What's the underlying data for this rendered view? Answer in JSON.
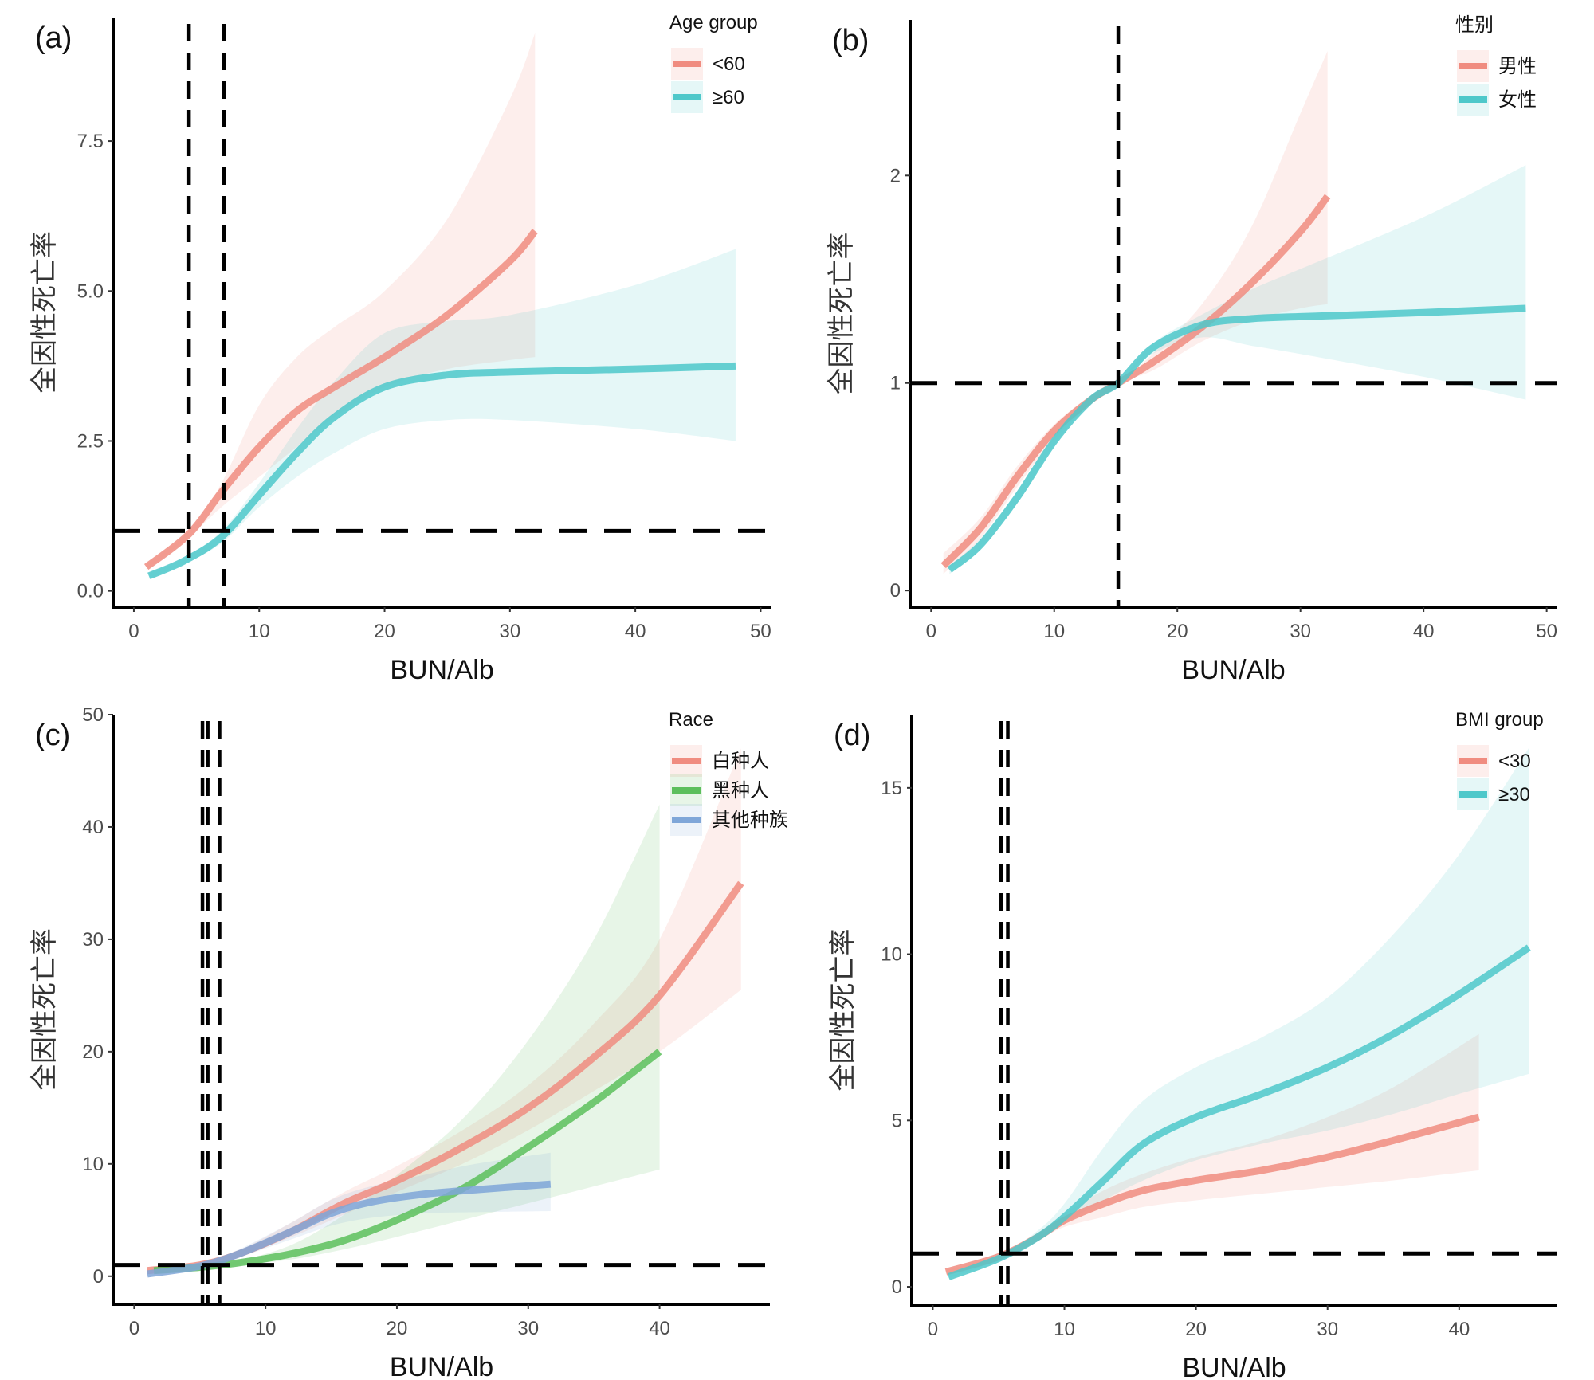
{
  "chart_data": [
    {
      "panel_label": "(a)",
      "type": "line",
      "xlabel": "BUN/Alb",
      "ylabel": "全因性死亡率",
      "xlim": [
        -1.65,
        50.8
      ],
      "ylim": [
        -0.27,
        9.56
      ],
      "xticks": [
        0,
        10,
        20,
        30,
        40,
        50
      ],
      "xtick_labels": [
        "0",
        "10",
        "20",
        "30",
        "40",
        "50"
      ],
      "yticks": [
        0,
        2.5,
        5,
        7.5
      ],
      "ytick_labels": [
        "0.0",
        "2.5",
        "5.0",
        "7.5"
      ],
      "vlines": [
        4.4,
        7.2
      ],
      "hline": 1,
      "grid": false,
      "legend": {
        "title": "Age group",
        "position": "top-right"
      },
      "series": [
        {
          "name": "<60",
          "color": "#F08C80",
          "x": [
            1,
            4.4,
            7,
            10,
            13,
            16,
            20,
            25,
            30,
            32
          ],
          "y": [
            0.4,
            0.95,
            1.65,
            2.4,
            3.0,
            3.4,
            3.9,
            4.6,
            5.5,
            6.0
          ],
          "lower": [
            0.35,
            0.9,
            1.4,
            1.9,
            2.4,
            2.9,
            3.4,
            3.7,
            3.85,
            3.9
          ],
          "upper": [
            0.45,
            1.0,
            1.8,
            3.1,
            3.9,
            4.4,
            5.0,
            6.2,
            8.2,
            9.3
          ]
        },
        {
          "name": "≥60",
          "color": "#4EC8CA",
          "x": [
            1.2,
            4,
            7,
            10,
            13,
            16,
            20,
            25,
            30,
            40,
            48
          ],
          "y": [
            0.25,
            0.5,
            0.9,
            1.6,
            2.3,
            2.9,
            3.4,
            3.6,
            3.65,
            3.7,
            3.75
          ],
          "lower": [
            0.2,
            0.45,
            0.8,
            1.4,
            1.9,
            2.3,
            2.7,
            2.85,
            2.85,
            2.7,
            2.5
          ],
          "upper": [
            0.3,
            0.55,
            1.0,
            1.8,
            2.7,
            3.5,
            4.3,
            4.5,
            4.6,
            5.1,
            5.7
          ]
        }
      ]
    },
    {
      "panel_label": "(b)",
      "type": "line",
      "xlabel": "BUN/Alb",
      "ylabel": "全因性死亡率",
      "xlim": [
        -1.7,
        50.8
      ],
      "ylim": [
        -0.08,
        2.75
      ],
      "xticks": [
        0,
        10,
        20,
        30,
        40,
        50
      ],
      "xtick_labels": [
        "0",
        "10",
        "20",
        "30",
        "40",
        "50"
      ],
      "yticks": [
        0,
        1,
        2
      ],
      "ytick_labels": [
        "0",
        "1",
        "2"
      ],
      "vlines": [
        15.2
      ],
      "hline": 1,
      "grid": false,
      "legend": {
        "title": "性别",
        "position": "top-right"
      },
      "series": [
        {
          "name": "男性",
          "color": "#F08C80",
          "x": [
            1,
            4,
            7,
            10,
            13,
            15.2,
            18,
            22,
            26,
            30,
            32.2
          ],
          "y": [
            0.12,
            0.3,
            0.55,
            0.77,
            0.92,
            1.0,
            1.1,
            1.27,
            1.48,
            1.73,
            1.9
          ],
          "lower": [
            0.08,
            0.25,
            0.5,
            0.73,
            0.9,
            1.0,
            1.06,
            1.2,
            1.3,
            1.36,
            1.38
          ],
          "upper": [
            0.18,
            0.35,
            0.6,
            0.8,
            0.94,
            1.0,
            1.14,
            1.38,
            1.75,
            2.3,
            2.6
          ]
        },
        {
          "name": "女性",
          "color": "#4EC8CA",
          "x": [
            1.5,
            4,
            7,
            10,
            13,
            15.2,
            18,
            22,
            26,
            30,
            40,
            48.3
          ],
          "y": [
            0.1,
            0.22,
            0.45,
            0.72,
            0.92,
            1.0,
            1.17,
            1.28,
            1.31,
            1.32,
            1.34,
            1.36
          ],
          "lower": [
            0.08,
            0.2,
            0.42,
            0.7,
            0.91,
            1.0,
            1.14,
            1.22,
            1.18,
            1.14,
            1.03,
            0.92
          ],
          "upper": [
            0.12,
            0.25,
            0.48,
            0.74,
            0.93,
            1.0,
            1.19,
            1.33,
            1.45,
            1.55,
            1.8,
            2.05
          ]
        }
      ]
    },
    {
      "panel_label": "(c)",
      "type": "line",
      "xlabel": "BUN/Alb",
      "ylabel": "全因性死亡率",
      "xlim": [
        -1.6,
        48.4
      ],
      "ylim": [
        -2.5,
        50
      ],
      "xticks": [
        0,
        10,
        20,
        30,
        40
      ],
      "xtick_labels": [
        "0",
        "10",
        "20",
        "30",
        "40"
      ],
      "yticks": [
        0,
        10,
        20,
        30,
        40,
        50
      ],
      "ytick_labels": [
        "0",
        "10",
        "20",
        "30",
        "40",
        "50"
      ],
      "vlines": [
        5.2,
        5.6,
        6.5
      ],
      "hline": 1,
      "grid": false,
      "legend": {
        "title": "Race",
        "position": "top-right"
      },
      "series": [
        {
          "name": "白种人",
          "color": "#F08C80",
          "x": [
            1,
            5,
            8,
            12,
            16,
            20,
            25,
            30,
            35,
            40,
            46.2
          ],
          "y": [
            0.5,
            1,
            2,
            4,
            6.5,
            8.5,
            11.5,
            15,
            19.5,
            25,
            35
          ],
          "lower": [
            0.4,
            0.9,
            1.8,
            3.5,
            5.5,
            7.5,
            10,
            13,
            16.5,
            20,
            25.5
          ],
          "upper": [
            0.6,
            1.1,
            2.3,
            4.8,
            7.5,
            9.8,
            13,
            17,
            22.5,
            30,
            47
          ]
        },
        {
          "name": "黑种人",
          "color": "#5CBF5C",
          "x": [
            1.5,
            5,
            8,
            12,
            16,
            20,
            25,
            30,
            35,
            40
          ],
          "y": [
            0.5,
            0.8,
            1.2,
            2,
            3.2,
            5,
            7.8,
            11.5,
            15.5,
            20
          ],
          "lower": [
            0.4,
            0.7,
            1,
            1.5,
            2.4,
            3.5,
            5,
            6.5,
            8,
            9.5
          ],
          "upper": [
            0.6,
            0.9,
            1.4,
            2.8,
            5.5,
            9,
            14,
            21,
            30,
            42
          ]
        },
        {
          "name": "其他种族",
          "color": "#7FA6D8",
          "x": [
            1,
            5,
            8,
            12,
            15,
            18,
            22,
            26,
            31.7
          ],
          "y": [
            0.2,
            0.9,
            2,
            4,
            5.6,
            6.6,
            7.3,
            7.7,
            8.2
          ],
          "lower": [
            0.15,
            0.8,
            1.7,
            3.3,
            4.5,
            5.2,
            5.6,
            5.7,
            5.8
          ],
          "upper": [
            0.3,
            1,
            2.4,
            4.8,
            6.8,
            8,
            9,
            10,
            11
          ]
        }
      ]
    },
    {
      "panel_label": "(d)",
      "type": "line",
      "xlabel": "BUN/Alb",
      "ylabel": "全因性死亡率",
      "xlim": [
        -1.6,
        47.4
      ],
      "ylim": [
        -0.55,
        17.2
      ],
      "xticks": [
        0,
        10,
        20,
        30,
        40
      ],
      "xtick_labels": [
        "0",
        "10",
        "20",
        "30",
        "40"
      ],
      "yticks": [
        0,
        5,
        10,
        15
      ],
      "ytick_labels": [
        "0",
        "5",
        "10",
        "15"
      ],
      "vlines": [
        5.2,
        5.7
      ],
      "hline": 1,
      "grid": false,
      "legend": {
        "title": "BMI group",
        "position": "top-right"
      },
      "series": [
        {
          "name": "<30",
          "color": "#F08C80",
          "x": [
            1,
            5,
            8,
            10,
            13,
            16,
            20,
            25,
            30,
            35,
            41.5
          ],
          "y": [
            0.45,
            0.9,
            1.5,
            2,
            2.5,
            2.9,
            3.2,
            3.5,
            3.9,
            4.4,
            5.1
          ],
          "lower": [
            0.4,
            0.85,
            1.4,
            1.8,
            2.1,
            2.4,
            2.6,
            2.8,
            3.0,
            3.2,
            3.5
          ],
          "upper": [
            0.5,
            0.95,
            1.6,
            2.2,
            2.9,
            3.4,
            3.9,
            4.4,
            5.1,
            6.0,
            7.6
          ]
        },
        {
          "name": "≥30",
          "color": "#4EC8CA",
          "x": [
            1.2,
            5,
            8,
            10,
            13,
            16,
            20,
            25,
            30,
            35,
            40,
            45.3
          ],
          "y": [
            0.3,
            0.85,
            1.5,
            2.1,
            3.2,
            4.3,
            5.1,
            5.8,
            6.6,
            7.6,
            8.8,
            10.2
          ],
          "lower": [
            0.25,
            0.8,
            1.4,
            1.9,
            2.6,
            3.2,
            3.8,
            4.3,
            4.7,
            5.2,
            5.8,
            6.4
          ],
          "upper": [
            0.35,
            0.9,
            1.7,
            2.5,
            4.2,
            5.6,
            6.6,
            7.5,
            8.7,
            10.6,
            13,
            16.2
          ]
        }
      ]
    }
  ]
}
